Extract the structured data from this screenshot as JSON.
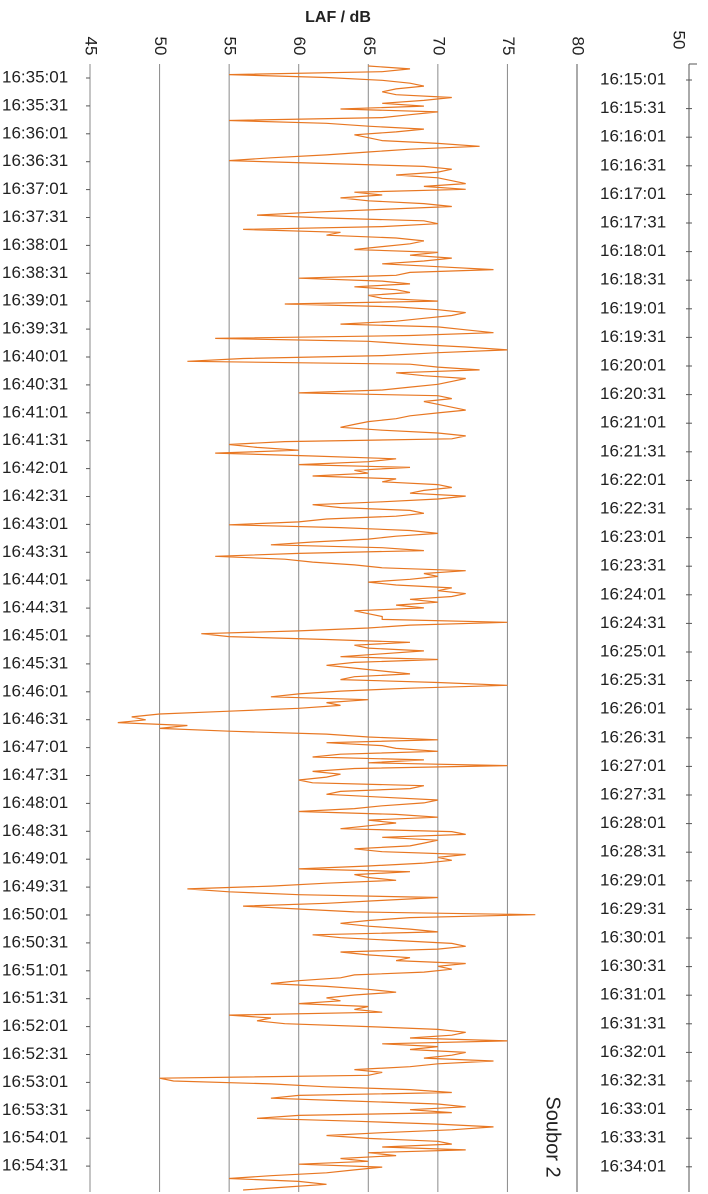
{
  "chart_data": {
    "type": "line",
    "orientation": "vertical-time",
    "xlabel": "LAF / dB",
    "xlim": [
      45,
      80
    ],
    "x_ticks": [
      "45",
      "50",
      "55",
      "60",
      "65",
      "70",
      "75",
      "80"
    ],
    "secondary_axis_tick": "50",
    "annotation": "Soubor 2",
    "grid": true,
    "line_color": "#e87722",
    "left_time_labels": [
      "16:35:01",
      "16:35:31",
      "16:36:01",
      "16:36:31",
      "16:37:01",
      "16:37:31",
      "16:38:01",
      "16:38:31",
      "16:39:01",
      "16:39:31",
      "16:40:01",
      "16:40:31",
      "16:41:01",
      "16:41:31",
      "16:42:01",
      "16:42:31",
      "16:43:01",
      "16:43:31",
      "16:44:01",
      "16:44:31",
      "16:45:01",
      "16:45:31",
      "16:46:01",
      "16:46:31",
      "16:47:01",
      "16:47:31",
      "16:48:01",
      "16:48:31",
      "16:49:01",
      "16:49:31",
      "16:50:01",
      "16:50:31",
      "16:51:01",
      "16:51:31",
      "16:52:01",
      "16:52:31",
      "16:53:01",
      "16:53:31",
      "16:54:01",
      "16:54:31"
    ],
    "right_time_labels": [
      "16:15:01",
      "16:15:31",
      "16:16:01",
      "16:16:31",
      "16:17:01",
      "16:17:31",
      "16:18:01",
      "16:18:31",
      "16:19:01",
      "16:19:31",
      "16:20:01",
      "16:20:31",
      "16:21:01",
      "16:21:31",
      "16:22:01",
      "16:22:31",
      "16:23:01",
      "16:23:31",
      "16:24:01",
      "16:24:31",
      "16:25:01",
      "16:25:31",
      "16:26:01",
      "16:26:31",
      "16:27:01",
      "16:27:31",
      "16:28:01",
      "16:28:31",
      "16:29:01",
      "16:29:31",
      "16:30:01",
      "16:30:31",
      "16:31:01",
      "16:31:31",
      "16:32:01",
      "16:32:31",
      "16:33:01",
      "16:33:31",
      "16:34:01"
    ],
    "series": [
      {
        "values": [
          65,
          68,
          66,
          55,
          62,
          66,
          68,
          69,
          67,
          66,
          67,
          71,
          69,
          66,
          69,
          63,
          70,
          68,
          66,
          55,
          62,
          65,
          69,
          67,
          64,
          65,
          66,
          70,
          73,
          68,
          65,
          62,
          58,
          55,
          62,
          69,
          71,
          70,
          67,
          70,
          71,
          72,
          69,
          72,
          64,
          66,
          63,
          65,
          69,
          71,
          66,
          61,
          57,
          62,
          69,
          70,
          66,
          56,
          63,
          62,
          67,
          69,
          68,
          66,
          64,
          70,
          68,
          71,
          69,
          66,
          70,
          74,
          68,
          67,
          60,
          66,
          68,
          64,
          67,
          68,
          65,
          66,
          70,
          59,
          67,
          70,
          72,
          71,
          69,
          67,
          63,
          70,
          72,
          74,
          68,
          54,
          65,
          68,
          72,
          75,
          70,
          66,
          56,
          52,
          68,
          70,
          73,
          67,
          69,
          72,
          71,
          70,
          68,
          66,
          60,
          70,
          71,
          69,
          70,
          71,
          72,
          70,
          68,
          67,
          65,
          64,
          63,
          66,
          70,
          72,
          71,
          59,
          55,
          57,
          60,
          54,
          61,
          67,
          65,
          60,
          68,
          64,
          65,
          61,
          67,
          66,
          70,
          71,
          69,
          68,
          72,
          70,
          66,
          61,
          63,
          68,
          69,
          67,
          62,
          60,
          55,
          63,
          68,
          70,
          67,
          65,
          61,
          58,
          66,
          69,
          60,
          54,
          59,
          61,
          64,
          66,
          72,
          69,
          70,
          68,
          65,
          67,
          71,
          70,
          72,
          71,
          68,
          70,
          67,
          69,
          64,
          65,
          66,
          66,
          75,
          68,
          65,
          60,
          53,
          55,
          62,
          68,
          64,
          65,
          69,
          66,
          63,
          70,
          64,
          62,
          64,
          66,
          68,
          64,
          63,
          70,
          75,
          68,
          63,
          60,
          58,
          65,
          62,
          63,
          60,
          55,
          50,
          48,
          49,
          47,
          52,
          50,
          55,
          62,
          65,
          70,
          62,
          66,
          67,
          70,
          63,
          61,
          69,
          65,
          75,
          64,
          61,
          63,
          62,
          60,
          61,
          69,
          68,
          63,
          62,
          66,
          70,
          69,
          66,
          64,
          60,
          67,
          70,
          65,
          67,
          65,
          63,
          71,
          72,
          66,
          70,
          69,
          68,
          64,
          66,
          72,
          70,
          71,
          69,
          65,
          60,
          68,
          64,
          65,
          67,
          62,
          58,
          52,
          55,
          60,
          70,
          66,
          62,
          56,
          60,
          64,
          77,
          68,
          65,
          63,
          65,
          68,
          70,
          61,
          63,
          67,
          71,
          72,
          70,
          63,
          65,
          68,
          67,
          72,
          70,
          71,
          69,
          64,
          63,
          60,
          58,
          62,
          65,
          67,
          64,
          62,
          63,
          60,
          65,
          64,
          66,
          55,
          58,
          57,
          59,
          65,
          70,
          72,
          71,
          68,
          75,
          66,
          70,
          68,
          72,
          71,
          69,
          74,
          70,
          68,
          64,
          66,
          65,
          50,
          51,
          58,
          62,
          68,
          71,
          60,
          58,
          64,
          70,
          72,
          68,
          71,
          60,
          57,
          64,
          70,
          74,
          71,
          66,
          62,
          65,
          70,
          71,
          66,
          72,
          65,
          67,
          63,
          65,
          60,
          66,
          64,
          62,
          58,
          55,
          60,
          62,
          59,
          56
        ]
      }
    ]
  }
}
